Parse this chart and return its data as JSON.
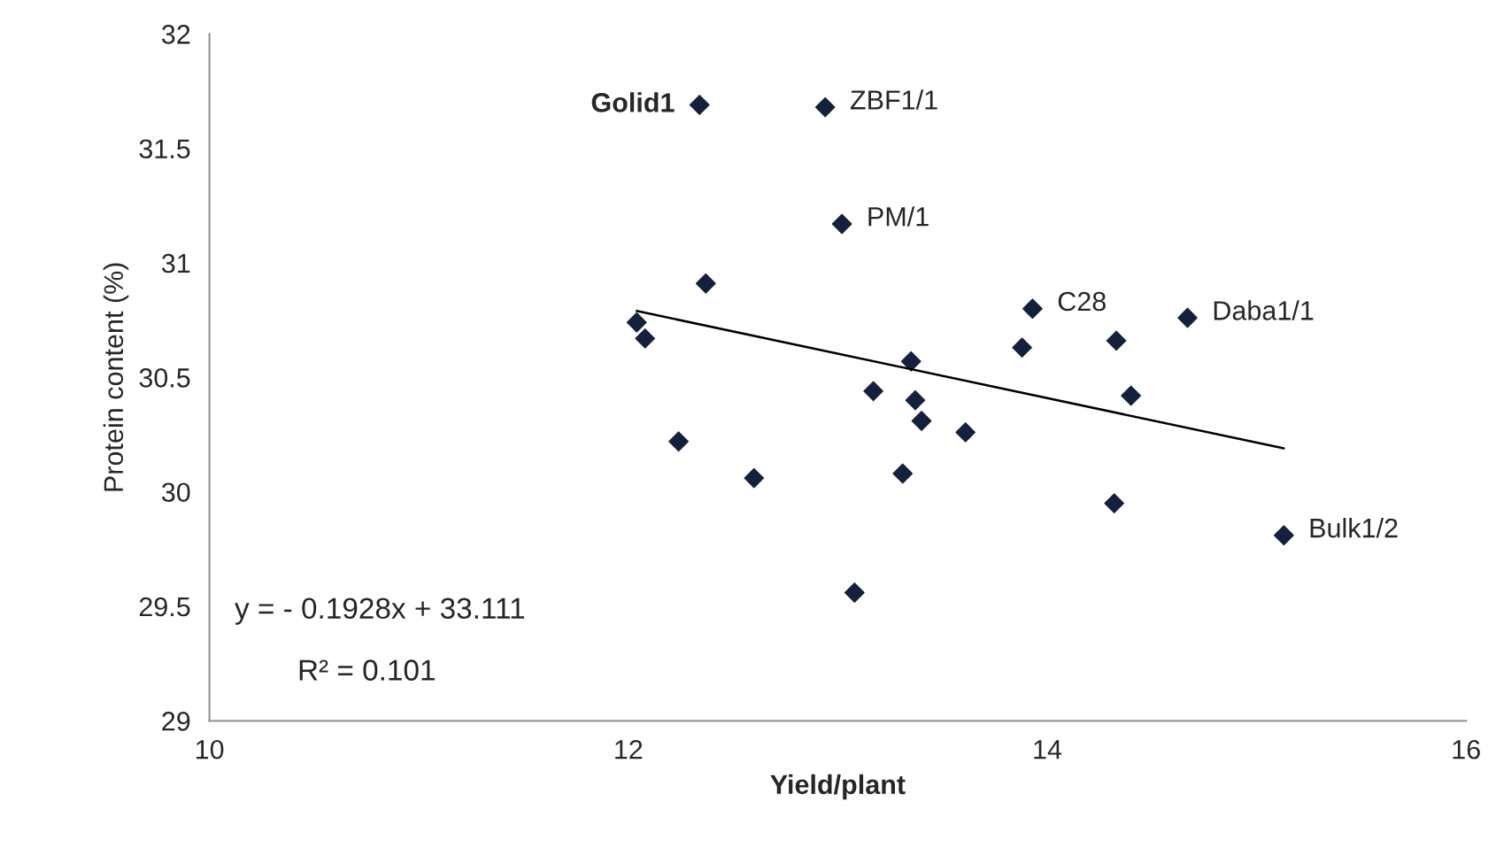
{
  "chart_data": {
    "type": "scatter",
    "xlabel": "Yield/plant",
    "ylabel": "Protein content (%)",
    "xlim": [
      10,
      16
    ],
    "xticks": [
      10,
      12,
      14,
      16
    ],
    "ylim": [
      29,
      32
    ],
    "yticks": [
      29,
      29.5,
      30,
      30.5,
      31,
      31.5,
      32
    ],
    "grid": false,
    "legend": false,
    "series": [
      {
        "marker": "diamond",
        "color": "#14213d",
        "x": [
          12.34,
          12.94,
          13.02,
          12.37,
          12.04,
          12.08,
          13.93,
          14.67,
          14.33,
          13.88,
          13.35,
          13.17,
          13.37,
          14.4,
          13.4,
          13.61,
          12.6,
          13.31,
          14.32,
          15.13,
          13.08,
          12.24
        ],
        "values": [
          31.69,
          31.68,
          31.17,
          30.91,
          30.74,
          30.67,
          30.8,
          30.76,
          30.66,
          30.63,
          30.57,
          30.44,
          30.4,
          30.42,
          30.31,
          30.26,
          30.06,
          30.08,
          29.95,
          29.81,
          29.56,
          30.22
        ]
      },
      {
        "type": "line",
        "marker": "none",
        "color": "#000000",
        "line_style": "solid",
        "x": [
          12.04,
          15.13
        ],
        "values": [
          30.79,
          30.19
        ]
      }
    ],
    "annotations": [
      {
        "text": "Golid1",
        "x": 12.34,
        "y": 31.69
      },
      {
        "text": "ZBF1/1",
        "x": 12.94,
        "y": 31.68
      },
      {
        "text": "PM/1",
        "x": 13.02,
        "y": 31.17
      },
      {
        "text": "C28",
        "x": 13.93,
        "y": 30.8
      },
      {
        "text": "Daba1/1",
        "x": 14.67,
        "y": 30.76
      },
      {
        "text": "Bulk1/2",
        "x": 15.13,
        "y": 29.81
      },
      "y = - 0.1928x + 33.111",
      "R² = 0.101"
    ]
  }
}
